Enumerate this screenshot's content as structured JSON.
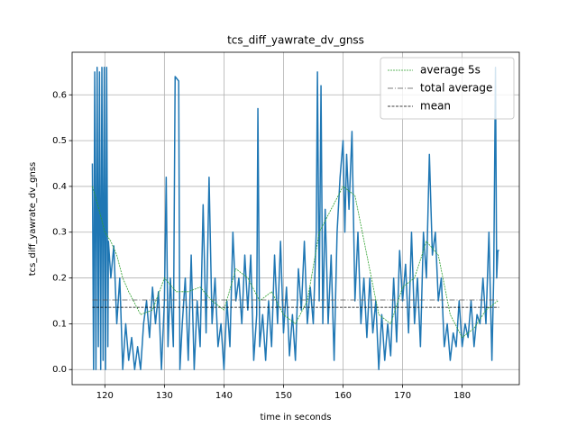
{
  "chart_data": {
    "type": "line",
    "title": "tcs_diff_yawrate_dv_gnss",
    "xlabel": "time in seconds",
    "ylabel": "tcs_diff_yawrate_dv_gnss",
    "xlim": [
      114.5,
      189.6
    ],
    "xticks": [
      120,
      130,
      140,
      150,
      160,
      170,
      180
    ],
    "ylim": [
      -0.033,
      0.693
    ],
    "yticks": [
      {
        "value": 0,
        "label": "0.0"
      },
      0.1,
      0.2,
      0.3,
      0.4,
      0.5,
      0.6
    ],
    "grid": true,
    "legend": "upper right",
    "series": [
      {
        "color": "#1f77b4",
        "x": [
          117.9,
          118.1,
          118.3,
          118.5,
          118.7,
          118.9,
          119.1,
          119.3,
          119.5,
          119.7,
          119.9,
          120.1,
          120.3,
          120.5,
          120.6,
          121,
          121.5,
          122,
          122.5,
          123,
          123.5,
          124,
          124.5,
          125,
          125.5,
          126,
          126.5,
          127,
          127.5,
          128,
          128.5,
          129,
          129.5,
          130,
          130.3,
          130.6,
          131,
          131.5,
          131.8,
          132.4,
          132.6,
          133,
          133.5,
          134,
          134.5,
          135,
          135.5,
          136,
          136.5,
          137,
          137.5,
          138,
          138.5,
          139,
          139.5,
          140,
          140.5,
          141,
          141.5,
          142,
          142.5,
          143,
          143.5,
          144,
          144.5,
          145,
          145.5,
          145.7,
          146,
          146.5,
          147,
          147.5,
          148,
          148.5,
          149,
          149.5,
          150,
          150.5,
          151,
          151.5,
          152,
          152.5,
          153,
          153.5,
          154,
          154.5,
          155,
          155.5,
          155.7,
          156,
          156.3,
          156.6,
          157,
          157.5,
          158,
          158.5,
          159,
          159.5,
          160,
          160.3,
          160.6,
          161,
          161.5,
          162,
          162.5,
          163,
          163.5,
          164,
          164.5,
          165,
          165.5,
          166,
          166.5,
          167,
          167.5,
          168,
          168.5,
          169,
          169.5,
          170,
          170.5,
          171,
          171.5,
          172,
          172.5,
          173,
          173.5,
          174,
          174.5,
          175,
          175.5,
          176,
          176.5,
          177,
          177.5,
          178,
          178.5,
          179,
          179.5,
          180,
          180.5,
          181,
          181.5,
          182,
          182.5,
          183,
          183.5,
          184,
          184.5,
          185,
          185.3,
          185.6,
          185.8,
          186,
          186.2
        ],
        "values": [
          0.45,
          0.0,
          0.65,
          0.0,
          0.66,
          0.05,
          0.65,
          0.0,
          0.66,
          0.02,
          0.66,
          0.0,
          0.66,
          0.05,
          0.28,
          0.2,
          0.27,
          0.1,
          0.2,
          0.0,
          0.1,
          0.02,
          0.07,
          0.0,
          0.05,
          0.0,
          0.1,
          0.15,
          0.07,
          0.18,
          0.1,
          0.17,
          0.0,
          0.15,
          0.42,
          0.05,
          0.2,
          0.05,
          0.64,
          0.63,
          0.0,
          0.1,
          0.2,
          0.02,
          0.25,
          0.0,
          0.15,
          0.05,
          0.36,
          0.08,
          0.42,
          0.1,
          0.2,
          0.05,
          0.1,
          0.0,
          0.15,
          0.05,
          0.3,
          0.15,
          0.2,
          0.1,
          0.25,
          0.13,
          0.25,
          0.02,
          0.12,
          0.57,
          0.05,
          0.12,
          0.02,
          0.15,
          0.05,
          0.25,
          0.1,
          0.28,
          0.08,
          0.18,
          0.03,
          0.12,
          0.02,
          0.22,
          0.13,
          0.28,
          0.1,
          0.18,
          0.1,
          0.3,
          0.65,
          0.15,
          0.62,
          0.1,
          0.35,
          0.1,
          0.25,
          0.02,
          0.3,
          0.42,
          0.5,
          0.3,
          0.47,
          0.35,
          0.52,
          0.15,
          0.3,
          0.1,
          0.2,
          0.07,
          0.2,
          0.08,
          0.15,
          0.0,
          0.12,
          0.02,
          0.1,
          0.03,
          0.2,
          0.06,
          0.26,
          0.15,
          0.23,
          0.08,
          0.3,
          0.1,
          0.2,
          0.05,
          0.3,
          0.2,
          0.47,
          0.25,
          0.3,
          0.15,
          0.2,
          0.05,
          0.1,
          0.02,
          0.08,
          0.05,
          0.15,
          0.05,
          0.1,
          0.07,
          0.15,
          0.05,
          0.12,
          0.1,
          0.2,
          0.1,
          0.3,
          0.02,
          0.2,
          0.66,
          0.2,
          0.26,
          0.26
        ]
      },
      {
        "name": "average 5s",
        "color": "#2ca02c",
        "dash": "2,1",
        "x": [
          117.9,
          119,
          120,
          121,
          122,
          123,
          124,
          126,
          128,
          130,
          132,
          134,
          136,
          138,
          140,
          142,
          144,
          146,
          148,
          150,
          152,
          154,
          156,
          158,
          160,
          162,
          164,
          166,
          168,
          170,
          172,
          174,
          176,
          178,
          180,
          182,
          184,
          186
        ],
        "values": [
          0.4,
          0.35,
          0.3,
          0.28,
          0.25,
          0.2,
          0.17,
          0.12,
          0.13,
          0.2,
          0.17,
          0.17,
          0.18,
          0.15,
          0.13,
          0.22,
          0.2,
          0.15,
          0.17,
          0.12,
          0.1,
          0.15,
          0.3,
          0.35,
          0.4,
          0.38,
          0.25,
          0.12,
          0.1,
          0.18,
          0.2,
          0.28,
          0.25,
          0.12,
          0.07,
          0.09,
          0.13,
          0.15
        ]
      },
      {
        "name": "total average",
        "color": "#555555",
        "dash": "6,2,1,2",
        "x": [
          117.9,
          186.2
        ],
        "values": [
          0.152,
          0.152
        ]
      },
      {
        "name": "mean",
        "color": "#000000",
        "dash": "3,1.5",
        "x": [
          117.9,
          186.2
        ],
        "values": [
          0.136,
          0.136
        ]
      }
    ]
  }
}
